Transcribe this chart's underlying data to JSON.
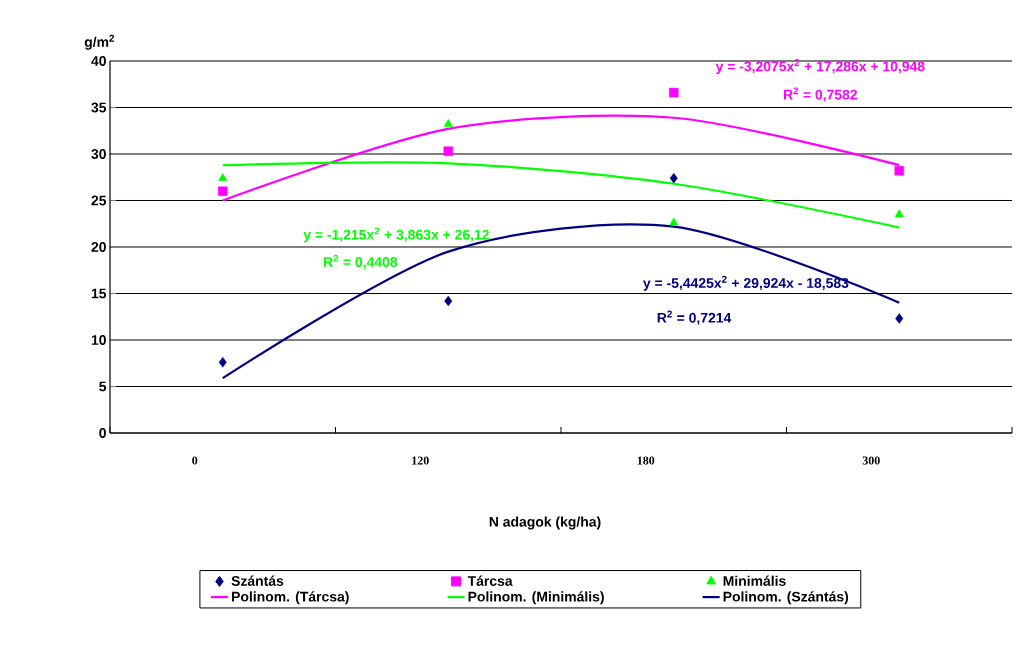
{
  "chart_data": {
    "type": "scatter",
    "xlabel": "N adagok (kg/ha)",
    "ylabel": "g/m$^{2}$",
    "categories": [
      "0",
      "120",
      "180",
      "300"
    ],
    "ylim": [
      0,
      40
    ],
    "yticks": [
      0,
      5,
      10,
      15,
      20,
      25,
      30,
      35,
      40
    ],
    "grid": "y",
    "legend": "bottom",
    "series": [
      {
        "name": "Szántás",
        "marker": "diamond",
        "color": "#000080",
        "values": [
          7.6,
          14.2,
          27.4,
          12.3
        ]
      },
      {
        "name": "Tárcsa",
        "marker": "square",
        "color": "#ff00ff",
        "values": [
          26.0,
          30.3,
          36.6,
          28.2
        ]
      },
      {
        "name": "Minimális",
        "marker": "triangle",
        "color": "#00ff00",
        "values": [
          27.4,
          33.2,
          22.6,
          23.5
        ]
      },
      {
        "name": "Polinom. (Tárcsa)",
        "type": "line",
        "marker": "none",
        "line_style": "solid",
        "color": "#ff00ff",
        "values": [
          25.0,
          32.7,
          33.9,
          28.8
        ]
      },
      {
        "name": "Polinom. (Minimális)",
        "type": "line",
        "marker": "none",
        "line_style": "solid",
        "color": "#00ff00",
        "values": [
          28.8,
          29.0,
          26.8,
          22.1
        ]
      },
      {
        "name": "Polinom. (Szántás)",
        "type": "line",
        "marker": "none",
        "line_style": "solid",
        "color": "#000080",
        "values": [
          5.9,
          19.5,
          22.2,
          14.0
        ]
      }
    ],
    "annotations": [
      "y = -3,2075x$^{2}$ + 17,286x + 10,948",
      "R$^{2}$ = 0,7582",
      "y = -1,215x$^{2}$ + 3,863x + 26,12",
      "R$^{2}$ = 0,4408",
      "y = -5,4425x$^{2}$ + 29,924x - 18,583",
      "R$^{2}$ = 0,7214"
    ]
  }
}
